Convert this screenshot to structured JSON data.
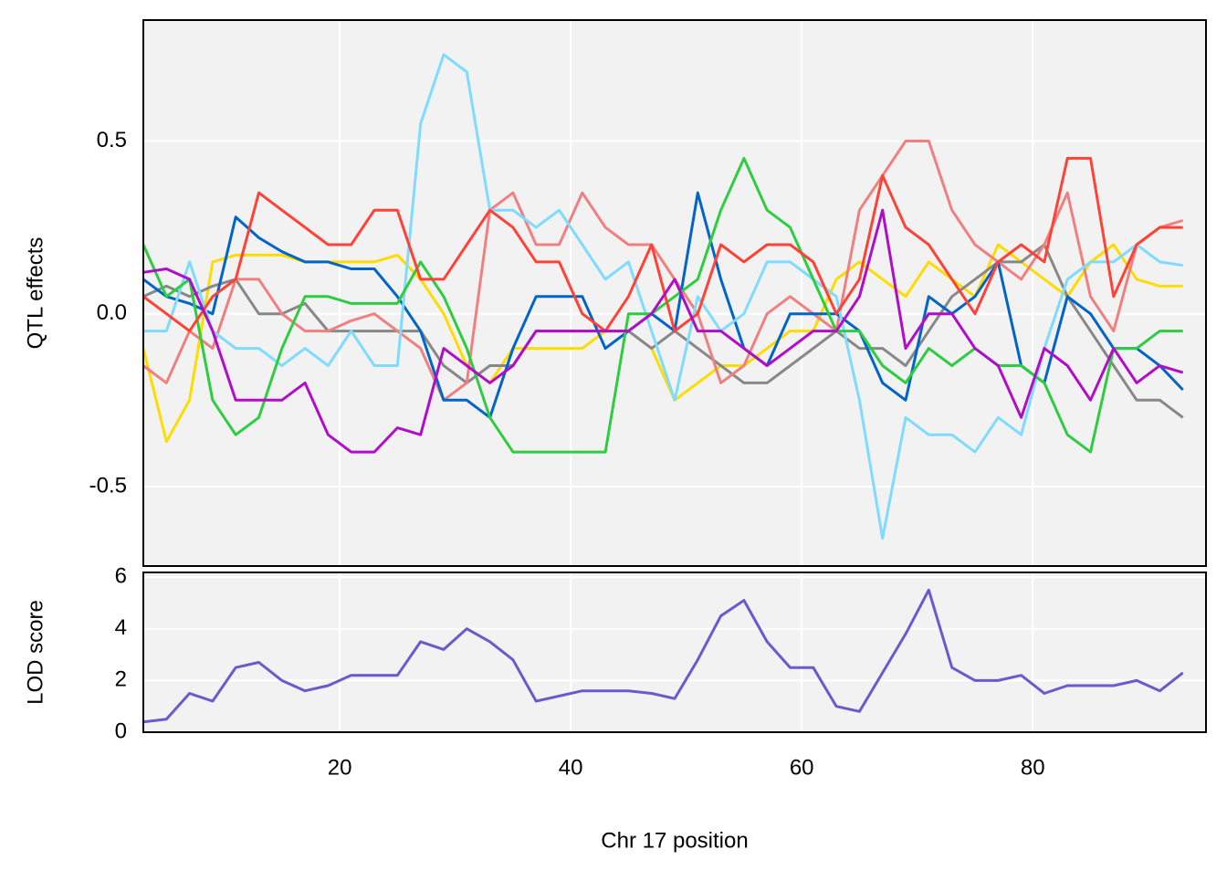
{
  "chart_data": [
    {
      "type": "line",
      "ylabel": "QTL effects",
      "x": [
        3,
        5,
        7,
        9,
        11,
        13,
        15,
        17,
        19,
        21,
        23,
        25,
        27,
        29,
        31,
        33,
        35,
        37,
        39,
        41,
        43,
        45,
        47,
        49,
        51,
        53,
        55,
        57,
        59,
        61,
        63,
        65,
        67,
        69,
        71,
        73,
        75,
        77,
        79,
        81,
        83,
        85,
        87,
        89,
        91,
        93
      ],
      "xlim": [
        3,
        95
      ],
      "ylim": [
        -0.73,
        0.85
      ],
      "xticks": [
        20,
        40,
        60,
        80
      ],
      "yticks": [
        -0.5,
        {
          "value": 0,
          "label": "0.0"
        },
        0.5
      ],
      "grid": true,
      "series": [
        {
          "color": "#FFDC00",
          "values": [
            -0.1,
            -0.37,
            -0.25,
            0.15,
            0.17,
            0.17,
            0.17,
            0.15,
            0.15,
            0.15,
            0.15,
            0.17,
            0.1,
            0,
            -0.15,
            -0.2,
            -0.1,
            -0.1,
            -0.1,
            -0.1,
            -0.05,
            -0.05,
            -0.1,
            -0.25,
            -0.2,
            -0.15,
            -0.15,
            -0.1,
            -0.05,
            -0.05,
            0.1,
            0.15,
            0.1,
            0.05,
            0.15,
            0.1,
            0.05,
            0.2,
            0.15,
            0.1,
            0.05,
            0.15,
            0.2,
            0.1,
            0.08,
            0.08
          ]
        },
        {
          "color": "#888888",
          "values": [
            0.05,
            0.08,
            0.05,
            0.08,
            0.1,
            0,
            0,
            0.03,
            -0.05,
            -0.05,
            -0.05,
            -0.05,
            -0.05,
            -0.15,
            -0.2,
            -0.15,
            -0.15,
            -0.05,
            -0.05,
            -0.05,
            -0.05,
            -0.05,
            -0.1,
            -0.05,
            -0.1,
            -0.15,
            -0.2,
            -0.2,
            -0.15,
            -0.1,
            -0.05,
            -0.1,
            -0.1,
            -0.15,
            -0.05,
            0.05,
            0.1,
            0.15,
            0.15,
            0.2,
            0.05,
            -0.05,
            -0.15,
            -0.25,
            -0.25,
            -0.3
          ]
        },
        {
          "color": "#F08080",
          "values": [
            -0.15,
            -0.2,
            -0.05,
            -0.1,
            0.1,
            0.1,
            0,
            -0.05,
            -0.05,
            -0.02,
            0,
            -0.05,
            -0.1,
            -0.25,
            -0.2,
            0.3,
            0.35,
            0.2,
            0.2,
            0.35,
            0.25,
            0.2,
            0.2,
            0.1,
            0,
            -0.2,
            -0.15,
            0,
            0.05,
            0,
            -0.05,
            0.3,
            0.4,
            0.5,
            0.5,
            0.3,
            0.2,
            0.15,
            0.1,
            0.2,
            0.35,
            0.05,
            -0.05,
            0.2,
            0.25,
            0.27
          ]
        },
        {
          "color": "#0064C9",
          "values": [
            0.1,
            0.05,
            0.03,
            0,
            0.28,
            0.22,
            0.18,
            0.15,
            0.15,
            0.13,
            0.13,
            0.05,
            -0.05,
            -0.25,
            -0.25,
            -0.3,
            -0.1,
            0.05,
            0.05,
            0.05,
            -0.1,
            -0.05,
            0,
            -0.05,
            0.35,
            0.1,
            -0.1,
            -0.15,
            0,
            0,
            0,
            -0.05,
            -0.2,
            -0.25,
            0.05,
            0,
            0.05,
            0.15,
            -0.15,
            -0.2,
            0.05,
            0,
            -0.1,
            -0.1,
            -0.15,
            -0.22
          ]
        },
        {
          "color": "#7FDBFF",
          "values": [
            -0.05,
            -0.05,
            0.15,
            -0.05,
            -0.1,
            -0.1,
            -0.15,
            -0.1,
            -0.15,
            -0.05,
            -0.15,
            -0.15,
            0.55,
            0.75,
            0.7,
            0.3,
            0.3,
            0.25,
            0.3,
            0.2,
            0.1,
            0.15,
            -0.05,
            -0.25,
            0.05,
            -0.05,
            0,
            0.15,
            0.15,
            0.1,
            0.05,
            -0.25,
            -0.65,
            -0.3,
            -0.35,
            -0.35,
            -0.4,
            -0.3,
            -0.35,
            -0.1,
            0.1,
            0.15,
            0.15,
            0.2,
            0.15,
            0.14
          ]
        },
        {
          "color": "#2ECC40",
          "values": [
            0.2,
            0.05,
            0.1,
            -0.25,
            -0.35,
            -0.3,
            -0.1,
            0.05,
            0.05,
            0.03,
            0.03,
            0.03,
            0.15,
            0.05,
            -0.1,
            -0.3,
            -0.4,
            -0.4,
            -0.4,
            -0.4,
            -0.4,
            0,
            0,
            0.05,
            0.1,
            0.3,
            0.45,
            0.3,
            0.25,
            0.1,
            -0.05,
            -0.05,
            -0.15,
            -0.2,
            -0.1,
            -0.15,
            -0.1,
            -0.15,
            -0.15,
            -0.2,
            -0.35,
            -0.4,
            -0.1,
            -0.1,
            -0.05,
            -0.05
          ]
        },
        {
          "color": "#FF4136",
          "values": [
            0.05,
            0,
            -0.05,
            0.05,
            0.1,
            0.35,
            0.3,
            0.25,
            0.2,
            0.2,
            0.3,
            0.3,
            0.1,
            0.1,
            0.2,
            0.3,
            0.25,
            0.15,
            0.15,
            0,
            -0.05,
            0.05,
            0.2,
            -0.05,
            0,
            0.2,
            0.15,
            0.2,
            0.2,
            0.15,
            0,
            0.1,
            0.4,
            0.25,
            0.2,
            0.1,
            0,
            0.15,
            0.2,
            0.15,
            0.45,
            0.45,
            0.05,
            0.2,
            0.25,
            0.25
          ]
        },
        {
          "color": "#B10DC9",
          "values": [
            0.12,
            0.13,
            0.1,
            -0.05,
            -0.25,
            -0.25,
            -0.25,
            -0.2,
            -0.35,
            -0.4,
            -0.4,
            -0.33,
            -0.35,
            -0.1,
            -0.15,
            -0.2,
            -0.15,
            -0.05,
            -0.05,
            -0.05,
            -0.05,
            -0.05,
            0,
            0.1,
            -0.05,
            -0.05,
            -0.1,
            -0.15,
            -0.1,
            -0.05,
            -0.05,
            0.05,
            0.3,
            -0.1,
            0,
            0,
            -0.1,
            -0.15,
            -0.3,
            -0.1,
            -0.15,
            -0.25,
            -0.1,
            -0.2,
            -0.15,
            -0.17
          ]
        }
      ]
    },
    {
      "type": "line",
      "ylabel": "LOD score",
      "xlabel": "Chr 17 position",
      "x": [
        3,
        5,
        7,
        9,
        11,
        13,
        15,
        17,
        19,
        21,
        23,
        25,
        27,
        29,
        31,
        33,
        35,
        37,
        39,
        41,
        43,
        45,
        47,
        49,
        51,
        53,
        55,
        57,
        59,
        61,
        63,
        65,
        67,
        69,
        71,
        73,
        75,
        77,
        79,
        81,
        83,
        85,
        87,
        89,
        91,
        93
      ],
      "xlim": [
        3,
        95
      ],
      "ylim": [
        0,
        6.18
      ],
      "xticks": [
        20,
        40,
        60,
        80
      ],
      "yticks": [
        0,
        2,
        4,
        6
      ],
      "grid": true,
      "series": [
        {
          "color": "#6A5ACD",
          "values": [
            0.4,
            0.5,
            1.5,
            1.2,
            2.5,
            2.7,
            2,
            1.6,
            1.8,
            2.2,
            2.2,
            2.2,
            3.5,
            3.2,
            4,
            3.5,
            2.8,
            1.2,
            1.4,
            1.6,
            1.6,
            1.6,
            1.5,
            1.3,
            2.8,
            4.5,
            5.1,
            3.5,
            2.5,
            2.5,
            1,
            0.8,
            2.3,
            3.8,
            5.5,
            2.5,
            2,
            2,
            2.2,
            1.5,
            1.8,
            1.8,
            1.8,
            2,
            1.6,
            2.3
          ]
        }
      ]
    }
  ]
}
